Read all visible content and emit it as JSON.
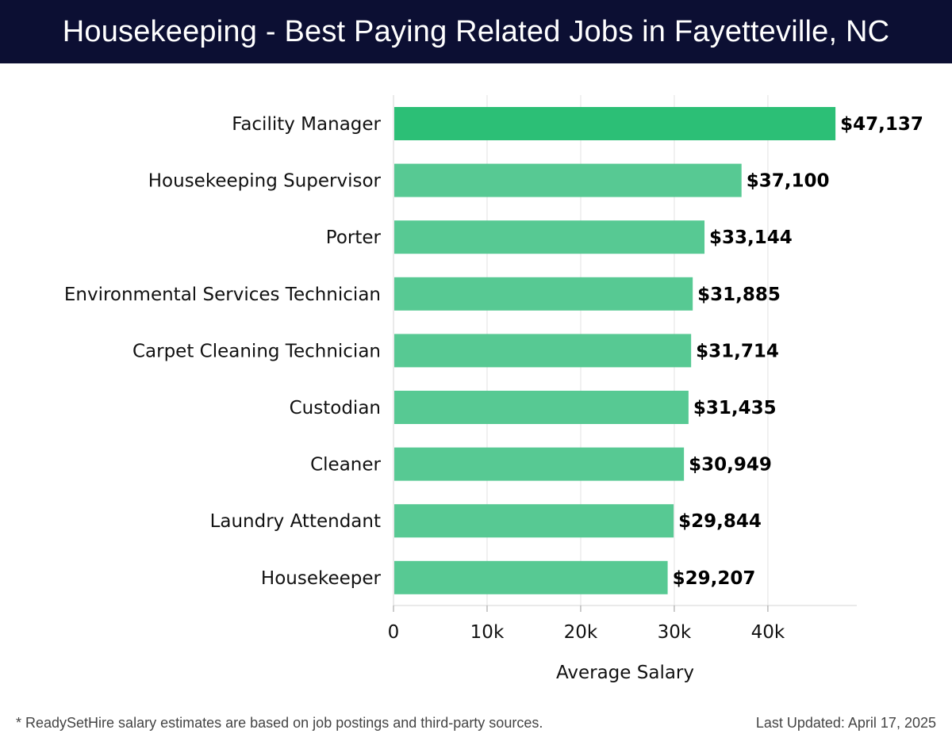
{
  "header": {
    "title": "Housekeeping - Best Paying Related Jobs in Fayetteville, NC",
    "background": "#0c0f33"
  },
  "chart_data": {
    "type": "bar",
    "orientation": "horizontal",
    "title": "Housekeeping - Best Paying Related Jobs in Fayetteville, NC",
    "categories": [
      "Facility Manager",
      "Housekeeping Supervisor",
      "Porter",
      "Environmental Services Technician",
      "Carpet Cleaning Technician",
      "Custodian",
      "Cleaner",
      "Laundry Attendant",
      "Housekeeper"
    ],
    "values": [
      47137,
      37100,
      33144,
      31885,
      31714,
      31435,
      30949,
      29844,
      29207
    ],
    "value_labels": [
      "$47,137",
      "$37,100",
      "$33,144",
      "$31,885",
      "$31,714",
      "$31,435",
      "$30,949",
      "$29,844",
      "$29,207"
    ],
    "xlabel": "Average Salary",
    "ylabel": "",
    "xlim": [
      0,
      49500
    ],
    "xticks": [
      0,
      10000,
      20000,
      30000,
      40000
    ],
    "xtick_labels": [
      "0",
      "10k",
      "20k",
      "30k",
      "40k"
    ],
    "grid": "vertical",
    "colors": {
      "highlight": "#2cbf76",
      "bar": "#57c993"
    }
  },
  "footer": {
    "note": "* ReadySetHire salary estimates are based on job postings and third-party sources.",
    "updated": "Last Updated: April 17, 2025"
  }
}
